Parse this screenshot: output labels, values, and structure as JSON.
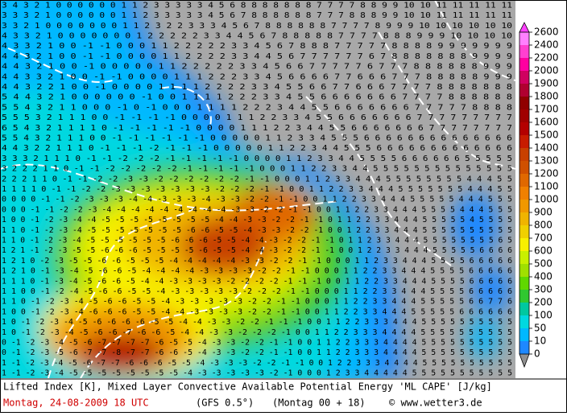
{
  "grid_rows": [
    "3 4 3 2 1 0 0 0 0 0 0 1 1 2 3 3 3 3 3 4 5 6 8 8 8 8 8 8 8 7 7 7 7 8 8 9 9 10 10 11 11 11 11 11",
    "3 3 3 2 1 0 0 0 0 0 0 1 1 2 3 3 3 3 3 4 5 6 7 8 8 8 8 8 8 7 7 7 8 8 8 9 9 10 10 11 11 11 11 11",
    "3 3 2 1 0 0 0 0 0 0 0 1 1 2 3 2 2 3 3 3 4 5 6 7 8 8 8 8 8 8 7 7 7 7 8 9 9 9 10 10 10 10 10 10",
    "4 3 3 2 1 0 0 0 0 0 0 0 1 2 2 2 2 2 3 3 4 4 5 6 7 8 8 8 8 8 7 7 7 7 8 8 8 9 9 9 10 10 10 10",
    "4 3 3 2 1 0 0 -1 -1 0 0 0 1 1 2 2 2 2 2 3 3 4 5 6 7 8 8 8 7 7 7 7 7 8 8 8 8 9 9 9 9 9 9 9",
    "4 4 3 2 1 0 0 -1 -1 0 0 0 0 1 1 2 2 2 2 3 3 4 4 5 6 7 7 7 7 7 7 6 7 8 8 8 8 8 8 8 9 9 9 9",
    "4 4 3 2 1 0 0 -1 0 0 0 0 0 1 1 2 2 2 2 2 3 3 4 5 6 6 7 7 7 7 7 6 7 7 7 8 8 8 8 8 8 9 9 9",
    "4 4 3 3 2 1 0 0 -1 -1 0 0 0 0 1 1 1 2 2 2 3 3 4 5 6 6 6 6 7 7 6 6 6 7 7 7 8 8 8 8 8 9 9 9",
    "4 4 3 2 2 1 0 0 -1 0 0 0 0 1 1 1 1 2 2 2 2 3 3 4 5 5 6 6 7 7 6 6 6 7 7 7 7 8 8 8 8 8 8 8",
    "5 4 4 3 2 1 0 0 0 0 0 0 -1 0 0 1 1 1 1 2 2 2 3 3 4 5 5 6 6 6 6 6 6 6 7 7 7 7 8 8 8 8 8 8",
    "5 5 4 3 2 1 1 0 0 0 -1 0 -1 0 0 0 1 1 1 1 2 2 2 3 4 4 5 5 6 6 6 6 6 6 6 7 7 7 7 7 8 8 8 8",
    "5 5 5 3 2 1 1 1 0 0 -1 -1 -1 -1 0 0 0 0 1 1 1 2 2 3 3 4 5 5 6 6 6 6 6 6 6 7 7 7 7 7 7 7 7 7",
    "6 5 4 3 2 1 1 1 1 0 -1 -1 -1 -1 -1 0 0 0 0 1 1 1 2 2 3 4 4 5 5 6 6 6 6 6 6 6 7 7 7 7 7 7 7 7",
    "5 5 4 3 2 1 1 1 0 0 -1 -1 -1 -1 -1 -1 0 0 0 0 0 1 1 2 3 3 4 5 5 5 6 6 6 6 6 6 6 6 6 6 6 6 6 6",
    "4 4 3 2 2 1 1 1 0 -1 -1 -1 -2 -1 -1 -1 0 0 0 0 0 1 1 2 2 3 4 4 5 5 5 6 6 6 6 6 6 6 6 6 6 6 6 6",
    "3 3 3 2 1 1 1 0 -1 -1 -2 -2 -2 -1 -1 -1 -1 -1 0 0 0 0 1 1 2 3 3 4 4 5 5 5 5 6 6 6 6 6 6 5 5 5 5 5",
    "3 2 2 2 1 1 0 -1 -1 -2 -2 -2 -2 -2 -1 -1 -1 -1 -1 0 0 0 1 1 2 2 3 3 4 4 5 5 5 5 5 5 5 5 5 5 5 5 5 5",
    "2 2 2 1 1 0 -1 -1 -2 -2 -3 -3 -2 -2 -2 -2 -2 -2 -1 -1 0 0 0 1 1 2 3 3 4 4 4 5 5 5 5 5 5 5 5 4 4 4 5 5",
    "1 1 1 1 0 -1 -1 -2 -2 -3 -3 -3 -3 -3 -3 -3 -2 -2 -2 -1 -1 0 0 1 1 2 2 3 3 4 4 4 5 5 5 5 5 5 5 4 4 4 5 5",
    "0 0 0 0 -1 -1 -2 -3 -3 -3 -4 -4 -3 -3 -3 -4 -3 -3 -2 -2 -1 -1 0 0 1 1 2 2 3 3 4 4 4 5 5 5 5 5 4 4 4 5 5 5",
    "0 0 0 -1 -1 -2 -2 -3 -4 -4 -4 -4 -4 -4 -4 -4 -4 -3 -3 -2 -2 -1 -1 0 0 1 1 2 2 3 3 4 4 4 5 5 5 5 4 4 4 5 5 5",
    "1 0 0 -1 -2 -3 -4 -4 -5 -5 -5 -5 -5 -5 -5 -5 -4 -4 -3 -3 -2 -2 -1 -1 0 1 1 2 2 3 3 4 4 4 5 5 5 5 5 4 5 5 5 5",
    "1 1 0 -1 -2 -3 -4 -5 -5 -5 -5 -5 -5 -5 -6 -6 -5 -5 -4 -3 -3 -2 -2 -1 0 0 1 2 2 3 3 4 4 4 5 5 5 5 5 5 5 5 5 5",
    "1 1 0 -1 -2 -3 -4 -5 -5 -5 -5 -5 -5 -6 -6 -6 -5 -5 -4 -4 -3 -2 -2 -1 -1 0 1 1 2 3 3 4 4 4 5 5 5 5 5 5 5 5 6 5",
    "1 2 1 -1 -2 -3 -5 -5 -6 -6 -6 -5 -5 -5 -5 -6 -5 -5 -4 -4 -3 -2 -2 -1 -1 0 0 1 2 2 3 3 4 4 4 5 5 5 5 5 6 6 6 6",
    "1 2 1 0 -2 -3 -5 -5 -6 -6 -5 -5 -5 -4 -4 -4 -4 -4 -3 -3 -2 -2 -1 -1 0 0 0 1 1 2 3 3 4 4 4 5 5 5 5 6 6 6 6 6",
    "1 2 1 0 -1 -3 -4 -5 -6 -6 -5 -4 -4 -4 -4 -3 -3 -3 -3 -2 -2 -1 -1 0 0 0 1 1 2 2 3 3 4 4 4 5 5 5 5 6 6 6 6 6",
    "1 1 1 0 -1 -3 -4 -5 -6 -6 -5 -4 -4 -3 -3 -3 -3 -2 -2 -2 -2 -1 -1 -1 0 0 1 1 2 2 3 3 4 4 4 5 5 5 5 6 6 6 6 6",
    "1 1 0 0 -1 -2 -4 -5 -6 -6 -5 -5 -4 -3 -3 -3 -3 -3 -2 -2 -2 -1 -1 0 0 0 1 1 2 2 3 3 4 4 4 5 5 5 5 6 6 6 6 6",
    "1 1 0 -1 -2 -3 -4 -5 -6 -6 -5 -5 -4 -3 -3 -3 -3 -3 -2 -2 -1 -1 0 0 0 1 1 2 2 3 3 4 4 4 5 5 5 5 5 6 6 7 7 6",
    "1 0 0 -1 -2 -3 -4 -6 -6 -6 -5 -5 -4 -4 -3 -3 -3 -3 -2 -2 -1 -1 0 0 1 1 2 2 3 3 4 4 4 5 5 5 5 5 6 6 6 6 6 6",
    "1 0 -1 -2 -3 -4 -5 -6 -6 -6 -6 -5 -5 -4 -4 -3 -3 -2 -2 -1 -1 -1 0 0 1 1 2 2 3 3 3 4 4 4 5 5 5 5 5 5 5 5 5 5",
    "1 0 -1 -2 -3 -4 -5 -6 -6 -7 -6 -6 -5 -4 -4 -3 -3 -2 -2 -2 -1 0 0 1 1 2 2 3 3 3 4 4 4 4 5 5 5 5 5 5 5 5 5 5",
    "0 -1 -2 -3 -4 -5 -6 -7 -7 -7 -7 -6 -5 -5 -4 -3 -3 -2 -2 -1 -1 0 0 1 1 2 2 3 3 3 4 4 4 4 5 5 5 5 5 5 5 5 5 5",
    "0 -1 -2 -3 -5 -6 -7 -7 -8 -7 -7 -6 -6 -5 -4 -3 -3 -2 -2 -1 -1 0 0 1 1 2 2 3 3 3 4 4 4 4 5 5 5 5 5 5 5 5 5 5",
    "1 -1 -2 -3 -4 -5 -6 -7 -7 -6 -6 -6 -5 -5 -4 -3 -3 -3 -2 -2 -1 -1 0 0 1 2 2 3 3 3 4 4 4 4 5 5 5 5 5 5 5 5 5 5",
    "1 -1 -2 -3 -4 -5 -5 -5 -5 -5 -5 -5 -5 -4 -3 -3 -3 -3 -3 -2 -1 0 0 0 1 2 3 3 4 4 4 4 4 5 5 5 5 5 5 5 5 5 5 5"
  ],
  "colorbar": {
    "labels": [
      2600,
      2400,
      2200,
      2000,
      1900,
      1800,
      1700,
      1600,
      1500,
      1400,
      1300,
      1200,
      1100,
      1000,
      900,
      800,
      700,
      600,
      500,
      400,
      300,
      200,
      100,
      50,
      10,
      0
    ],
    "colors": [
      "#ff80ff",
      "#ff40d0",
      "#ff00a0",
      "#d00060",
      "#b00030",
      "#900000",
      "#a00000",
      "#b40000",
      "#c81c00",
      "#c84000",
      "#d05000",
      "#e06800",
      "#f08000",
      "#f09800",
      "#f0b400",
      "#f0d000",
      "#f8f000",
      "#c8f000",
      "#a0e000",
      "#60d800",
      "#30c830",
      "#00c8a0",
      "#00d8e0",
      "#00b8ff",
      "#1e88ff"
    ]
  },
  "footer": {
    "description": "Lifted Index [K], Mixed Layer Convective Available Potential Energy 'ML CAPE' [J/kg]",
    "date": "Montag, 24-08-2009  18 UTC",
    "model": "(GFS 0.5°)",
    "run": "(Montag 00 + 18)",
    "source": "© www.wetter3.de"
  }
}
